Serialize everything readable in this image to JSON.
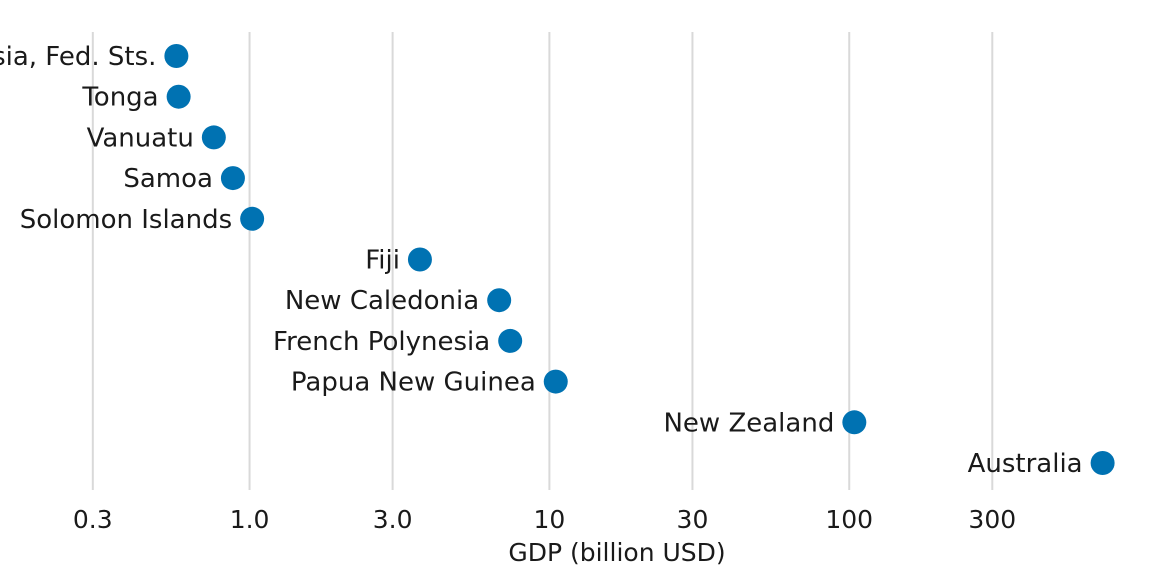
{
  "chart_data": {
    "type": "scatter",
    "title": "",
    "xlabel": "GDP (billion USD)",
    "ylabel": "",
    "x_scale": "log",
    "xlim": [
      0.2,
      800
    ],
    "x_ticks": [
      0.3,
      1.0,
      3.0,
      10,
      30,
      100,
      300
    ],
    "x_tick_labels": [
      "0.3",
      "1.0",
      "3.0",
      "10",
      "30",
      "100",
      "300"
    ],
    "grid": "vertical",
    "legend": "none",
    "point_color": "#0072B2",
    "points": [
      {
        "label": "Micronesia, Fed. Sts.",
        "x": 0.57
      },
      {
        "label": "Tonga",
        "x": 0.58
      },
      {
        "label": "Vanuatu",
        "x": 0.76
      },
      {
        "label": "Samoa",
        "x": 0.88
      },
      {
        "label": "Solomon Islands",
        "x": 1.02
      },
      {
        "label": "Fiji",
        "x": 3.7
      },
      {
        "label": "New Caledonia",
        "x": 6.8
      },
      {
        "label": "French Polynesia",
        "x": 7.4
      },
      {
        "label": "Papua New Guinea",
        "x": 10.5
      },
      {
        "label": "New Zealand",
        "x": 104
      },
      {
        "label": "Australia",
        "x": 700
      }
    ]
  }
}
